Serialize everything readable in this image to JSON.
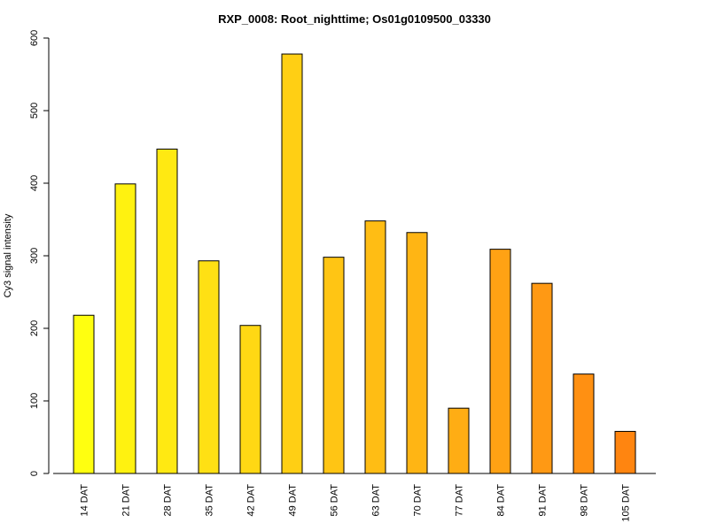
{
  "chart_data": {
    "type": "bar",
    "title": "RXP_0008: Root_nighttime; Os01g0109500_03330",
    "xlabel": "",
    "ylabel": "Cy3 signal intensity",
    "ylim": [
      0,
      600
    ],
    "yticks": [
      0,
      100,
      200,
      300,
      400,
      500,
      600
    ],
    "grid": false,
    "categories": [
      "14 DAT",
      "21 DAT",
      "28 DAT",
      "35 DAT",
      "42 DAT",
      "49 DAT",
      "56 DAT",
      "63 DAT",
      "70 DAT",
      "77 DAT",
      "84 DAT",
      "91 DAT",
      "98 DAT",
      "105 DAT"
    ],
    "values": [
      218,
      399,
      447,
      293,
      204,
      578,
      298,
      348,
      332,
      90,
      309,
      262,
      137,
      58
    ],
    "colors": [
      "#ffff10",
      "#fff210",
      "#ffe912",
      "#ffe014",
      "#ffd814",
      "#ffcf14",
      "#ffc514",
      "#ffbd14",
      "#ffb514",
      "#ffad14",
      "#ffa214",
      "#ff9914",
      "#ff9012",
      "#ff8510"
    ]
  }
}
